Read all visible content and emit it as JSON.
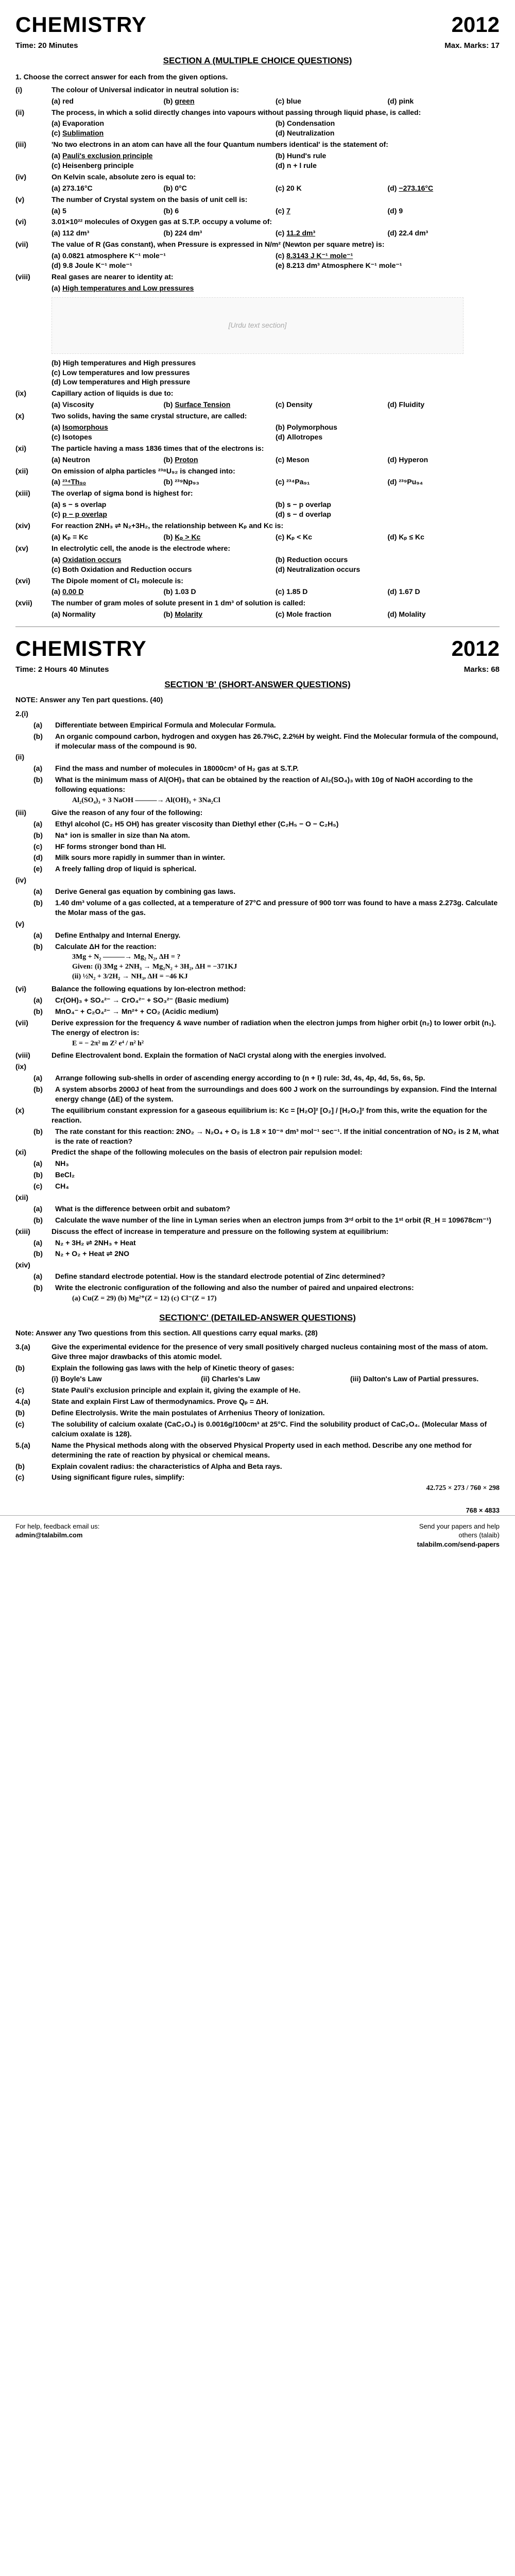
{
  "header1": {
    "subject": "CHEMISTRY",
    "year": "2012",
    "time": "Time: 20 Minutes",
    "marks": "Max. Marks: 17"
  },
  "secA": "SECTION A (MULTIPLE CHOICE QUESTIONS)",
  "q1": "1. Choose the correct answer for each from the given options.",
  "mcq": [
    {
      "n": "(i)",
      "txt": "The colour of Universal indicator in neutral solution is:",
      "opts": [
        "red",
        "green",
        "blue",
        "pink"
      ],
      "ans": 1
    },
    {
      "n": "(ii)",
      "txt": "The process, in which a solid directly changes into vapours without passing through liquid phase, is called:",
      "opts": [
        "Evaporation",
        "Condensation",
        "Sublimation",
        "Neutralization"
      ],
      "ans": 2,
      "layout": "2"
    },
    {
      "n": "(iii)",
      "txt": "'No two electrons in an atom can have all the four Quantum numbers identical' is the statement of:",
      "opts": [
        "Pauli's exclusion principle",
        "Hund's rule",
        "Heisenberg principle",
        "n + l rule"
      ],
      "ans": 0,
      "layout": "2"
    },
    {
      "n": "(iv)",
      "txt": "On Kelvin scale, absolute zero is equal to:",
      "opts": [
        "273.16°C",
        "0°C",
        "20 K",
        "−273.16°C"
      ],
      "ans": 3
    },
    {
      "n": "(v)",
      "txt": "The number of Crystal system on the basis of unit cell is:",
      "opts": [
        "5",
        "6",
        "7",
        "9"
      ],
      "ans": 2
    },
    {
      "n": "(vi)",
      "txt": "3.01×10²² molecules of Oxygen gas at S.T.P. occupy a volume of:",
      "opts": [
        "112 dm³",
        "224 dm³",
        "11.2 dm³",
        "22.4 dm³"
      ],
      "ans": 2
    },
    {
      "n": "(vii)",
      "txt": "The value of R (Gas constant), when Pressure is expressed in N/m² (Newton per square metre) is:",
      "opts": [
        "0.0821 atmosphere K⁻¹ mole⁻¹",
        "",
        "8.3143 J K⁻¹ mole⁻¹",
        "9.8 Joule K⁻¹ mole⁻¹",
        "8.213 dm³ Atmosphere K⁻¹ mole⁻¹",
        ""
      ],
      "ans": 2,
      "layout": "2"
    },
    {
      "n": "(viii)",
      "txt": "Real gases are nearer to identity at:",
      "opts": [
        "High temperatures and Low pressures"
      ],
      "ans": 0,
      "layout": "1"
    }
  ],
  "urdu_note": "[Urdu text section]",
  "mcq2": [
    {
      "n": "",
      "txt": "",
      "opts": [
        "High temperatures and High pressures",
        "Low temperatures and low pressures",
        "Low temperatures and High pressure"
      ],
      "layout": "1b"
    },
    {
      "n": "(ix)",
      "txt": "Capillary action of liquids is due to:",
      "opts": [
        "Viscosity",
        "Surface Tension",
        "Density",
        "Fluidity"
      ],
      "ans": 1
    },
    {
      "n": "(x)",
      "txt": "Two solids, having the same crystal structure, are called:",
      "opts": [
        "Isomorphous",
        "Polymorphous",
        "Isotopes",
        "Allotropes"
      ],
      "ans": 0,
      "layout": "2"
    },
    {
      "n": "(xi)",
      "txt": "The particle having a mass 1836 times that of the electrons is:",
      "opts": [
        "Neutron",
        "Proton",
        "Meson",
        "Hyperon"
      ],
      "ans": 1
    },
    {
      "n": "(xii)",
      "txt": "On emission of alpha particles ²³⁸U₉₂ is changed into:",
      "opts": [
        "²³⁴Th₉₀",
        "²³⁹Np₉₃",
        "²³⁴Pa₉₁",
        "²³⁹Pu₉₄"
      ],
      "ans": 0
    },
    {
      "n": "(xiii)",
      "txt": "The overlap of sigma bond is highest for:",
      "opts": [
        "s − s overlap",
        "s − p overlap",
        "p − p overlap",
        "s − d overlap"
      ],
      "ans": 2,
      "layout": "2"
    },
    {
      "n": "(xiv)",
      "txt": "For reaction 2NH₃ ⇌ N₂+3H₂, the relationship between Kₚ and Kc is:",
      "opts": [
        "Kₚ = Kc",
        "Kₚ > Kc",
        "Kₚ < Kc",
        "Kₚ ≤ Kc"
      ],
      "ans": 1
    },
    {
      "n": "(xv)",
      "txt": "In electrolytic cell, the anode is the electrode where:",
      "opts": [
        "Oxidation occurs",
        "Reduction occurs",
        "Both Oxidation and Reduction occurs",
        "Neutralization occurs"
      ],
      "ans": 0,
      "layout": "2"
    },
    {
      "n": "(xvi)",
      "txt": "The Dipole moment of Cl₂ molecule is:",
      "opts": [
        "0.00 D",
        "1.03 D",
        "1.85 D",
        "1.67 D"
      ],
      "ans": 0
    },
    {
      "n": "(xvii)",
      "txt": "The number of gram moles of solute present in 1 dm³ of solution is called:",
      "opts": [
        "Normality",
        "Molarity",
        "Mole fraction",
        "Molality"
      ],
      "ans": 1
    }
  ],
  "header2": {
    "subject": "CHEMISTRY",
    "year": "2012",
    "time": "Time: 2 Hours 40 Minutes",
    "marks": "Marks: 68"
  },
  "secB": "SECTION 'B' (SHORT-ANSWER QUESTIONS)",
  "noteB": "NOTE: Answer any Ten part questions. (40)",
  "short": [
    {
      "n": "2.(i)",
      "sub": [
        {
          "k": "(a)",
          "t": "Differentiate between Empirical Formula and Molecular Formula."
        },
        {
          "k": "(b)",
          "t": "An organic compound carbon, hydrogen and oxygen has 26.7%C, 2.2%H by weight. Find the Molecular formula of the compound, if molecular mass of the compound is 90."
        }
      ]
    },
    {
      "n": "(ii)",
      "sub": [
        {
          "k": "(a)",
          "t": "Find the mass and number of molecules in 18000cm³ of H₂ gas at S.T.P."
        },
        {
          "k": "(b)",
          "t": "What is the minimum mass of Al(OH)₃ that can be obtained by the reaction of Al₂(SO₄)₃ with 10g of NaOH according to the following equations:"
        }
      ],
      "eq": "Al₂(SO₄)₃ + 3 NaOH ———→ Al(OH)₃ + 3Na₂Cl"
    },
    {
      "n": "(iii)",
      "plain": "Give the reason of any four of the following:",
      "sub": [
        {
          "k": "(a)",
          "t": "Ethyl alcohol (C₂ H5 OH) has greater viscosity than Diethyl ether (C₂H₅ − O − C₂H₅)"
        },
        {
          "k": "(b)",
          "t": "Na⁺ ion is smaller in size than Na atom."
        },
        {
          "k": "(c)",
          "t": "HF forms stronger bond than HI."
        },
        {
          "k": "(d)",
          "t": "Milk sours more rapidly in summer than in winter."
        },
        {
          "k": "(e)",
          "t": "A freely falling drop of liquid is spherical."
        }
      ]
    },
    {
      "n": "(iv)",
      "sub": [
        {
          "k": "(a)",
          "t": "Derive General gas equation by combining gas laws."
        },
        {
          "k": "(b)",
          "t": "1.40 dm³ volume of a gas collected, at a temperature of 27°C and pressure of 900 torr was found to have a mass 2.273g. Calculate the Molar mass of the gas."
        }
      ]
    },
    {
      "n": "(v)",
      "sub": [
        {
          "k": "(a)",
          "t": "Define Enthalpy and Internal Energy."
        },
        {
          "k": "(b)",
          "t": "Calculate ΔH for the reaction:"
        }
      ],
      "eq": "3Mg + N₂ ———→ Mg₂ N₂,   ΔH = ?\nGiven: (i) 3Mg + 2NH₃ → Mg₂N₂ + 3H₂,  ΔH = −371KJ\n(ii) ½N₂ + 3/2H₂ → NH₃,  ΔH = −46 KJ"
    },
    {
      "n": "(vi)",
      "plain": "Balance the following equations by Ion-electron method:",
      "sub": [
        {
          "k": "(a)",
          "t": "Cr(OH)₃ + SO₄²⁻ → CrO₄²⁻ + SO₃²⁻  (Basic medium)"
        },
        {
          "k": "(b)",
          "t": "MnO₄⁻ + C₂O₄²⁻ → Mn²⁺ + CO₂  (Acidic medium)"
        }
      ]
    },
    {
      "n": "(vii)",
      "plain": "Derive expression for the frequency & wave number of radiation when the electron jumps from higher orbit (n₂) to lower orbit (n₁). The energy of electron is:",
      "eq": "E = − 2π² m Z² e⁴ / n² h²"
    },
    {
      "n": "(viii)",
      "plain": "Define Electrovalent bond. Explain the formation of NaCl crystal along with the energies involved."
    },
    {
      "n": "(ix)",
      "sub": [
        {
          "k": "(a)",
          "t": "Arrange following sub-shells in order of ascending energy according to (n + l) rule: 3d, 4s, 4p, 4d, 5s, 6s, 5p."
        },
        {
          "k": "(b)",
          "t": "A system absorbs 2000J of heat from the surroundings and does 600 J work on the surroundings by expansion. Find the Internal energy change (ΔE) of the system."
        }
      ]
    },
    {
      "n": "(x)",
      "plain": "The equilibrium constant expression for a gaseous equilibrium is: Kc = [H₂O]² [O₂] / [H₂O₂]²   from this, write the equation for the reaction.",
      "sub": [
        {
          "k": "(b)",
          "t": "The rate constant for this reaction: 2NO₂ → N₂O₄ + O₂ is 1.8 × 10⁻⁸ dm³ mol⁻¹ sec⁻¹. If the initial concentration of NO₂ is 2 M, what is the rate of reaction?"
        }
      ]
    },
    {
      "n": "(xi)",
      "plain": "Predict the shape of the following molecules on the basis of electron pair repulsion model:",
      "sub": [
        {
          "k": "(a)",
          "t": "NH₃"
        },
        {
          "k": "(b)",
          "t": "BeCl₂"
        },
        {
          "k": "(c)",
          "t": "CH₄"
        }
      ]
    },
    {
      "n": "(xii)",
      "sub": [
        {
          "k": "(a)",
          "t": "What is the difference between orbit and subatom?"
        },
        {
          "k": "(b)",
          "t": "Calculate the wave number of the line in Lyman series when an electron jumps from 3ʳᵈ orbit to the 1ˢᵗ orbit (R_H = 109678cm⁻¹)"
        }
      ]
    },
    {
      "n": "(xiii)",
      "plain": "Discuss the effect of increase in temperature and pressure on the following system at equilibrium:",
      "sub": [
        {
          "k": "(a)",
          "t": "N₂ + 3H₂ ⇌ 2NH₃ + Heat"
        },
        {
          "k": "(b)",
          "t": "N₂ + O₂ + Heat ⇌ 2NO"
        }
      ]
    },
    {
      "n": "(xiv)",
      "sub": [
        {
          "k": "(a)",
          "t": "Define standard electrode potential. How is the standard electrode potential of Zinc determined?"
        },
        {
          "k": "(b)",
          "t": "Write the electronic configuration of the following and also the number of paired and unpaired electrons:"
        }
      ],
      "eq": "(a) Cu(Z = 29)   (b) Mg²⁺(Z = 12)   (c) Cl⁻(Z = 17)"
    }
  ],
  "secC": "SECTION'C' (DETAILED-ANSWER QUESTIONS)",
  "noteC": "Note: Answer any Two questions from this section. All questions carry equal marks. (28)",
  "long": [
    {
      "n": "3.(a)",
      "t": "Give the experimental evidence for the presence of very small positively charged nucleus containing most of the mass of atom. Give three major drawbacks of this atomic model."
    },
    {
      "n": "(b)",
      "t": "Explain the following gas laws with the help of Kinetic theory of gases:",
      "sub": [
        {
          "k": "(i)",
          "t": "Boyle's Law"
        },
        {
          "k": "(ii)",
          "t": "Charles's Law"
        },
        {
          "k": "(iii)",
          "t": "Dalton's Law of Partial pressures."
        }
      ]
    },
    {
      "n": "(c)",
      "t": "State Pauli's exclusion principle and explain it, giving the example of He."
    },
    {
      "n": "4.(a)",
      "t": "State and explain First Law of thermodynamics. Prove Qₚ = ΔH."
    },
    {
      "n": "(b)",
      "t": "Define Electrolysis. Write the main postulates of Arrhenius Theory of Ionization."
    },
    {
      "n": "(c)",
      "t": "The solubility of calcium oxalate (CaC₂O₄) is 0.0016g/100cm³ at 25°C. Find the solubility product of CaC₂O₄. (Molecular Mass of calcium oxalate is 128)."
    },
    {
      "n": "5.(a)",
      "t": "Name the Physical methods along with the observed Physical Property used in each method. Describe any one method for determining the rate of reaction by physical or chemical means."
    },
    {
      "n": "(b)",
      "t": "Explain covalent radius: the characteristics of Alpha and Beta rays."
    },
    {
      "n": "(c)",
      "t": "Using significant figure rules, simplify:"
    }
  ],
  "final_eq": "42.725 × 273 / 760 × 298",
  "footer": {
    "left1": "For help, feedback email us:",
    "left2": "admin@talabilm.com",
    "right1": "Send your papers and help",
    "right2": "others (talaib)",
    "right3": "talabilm.com/send-papers"
  },
  "dims": "768 × 4833"
}
